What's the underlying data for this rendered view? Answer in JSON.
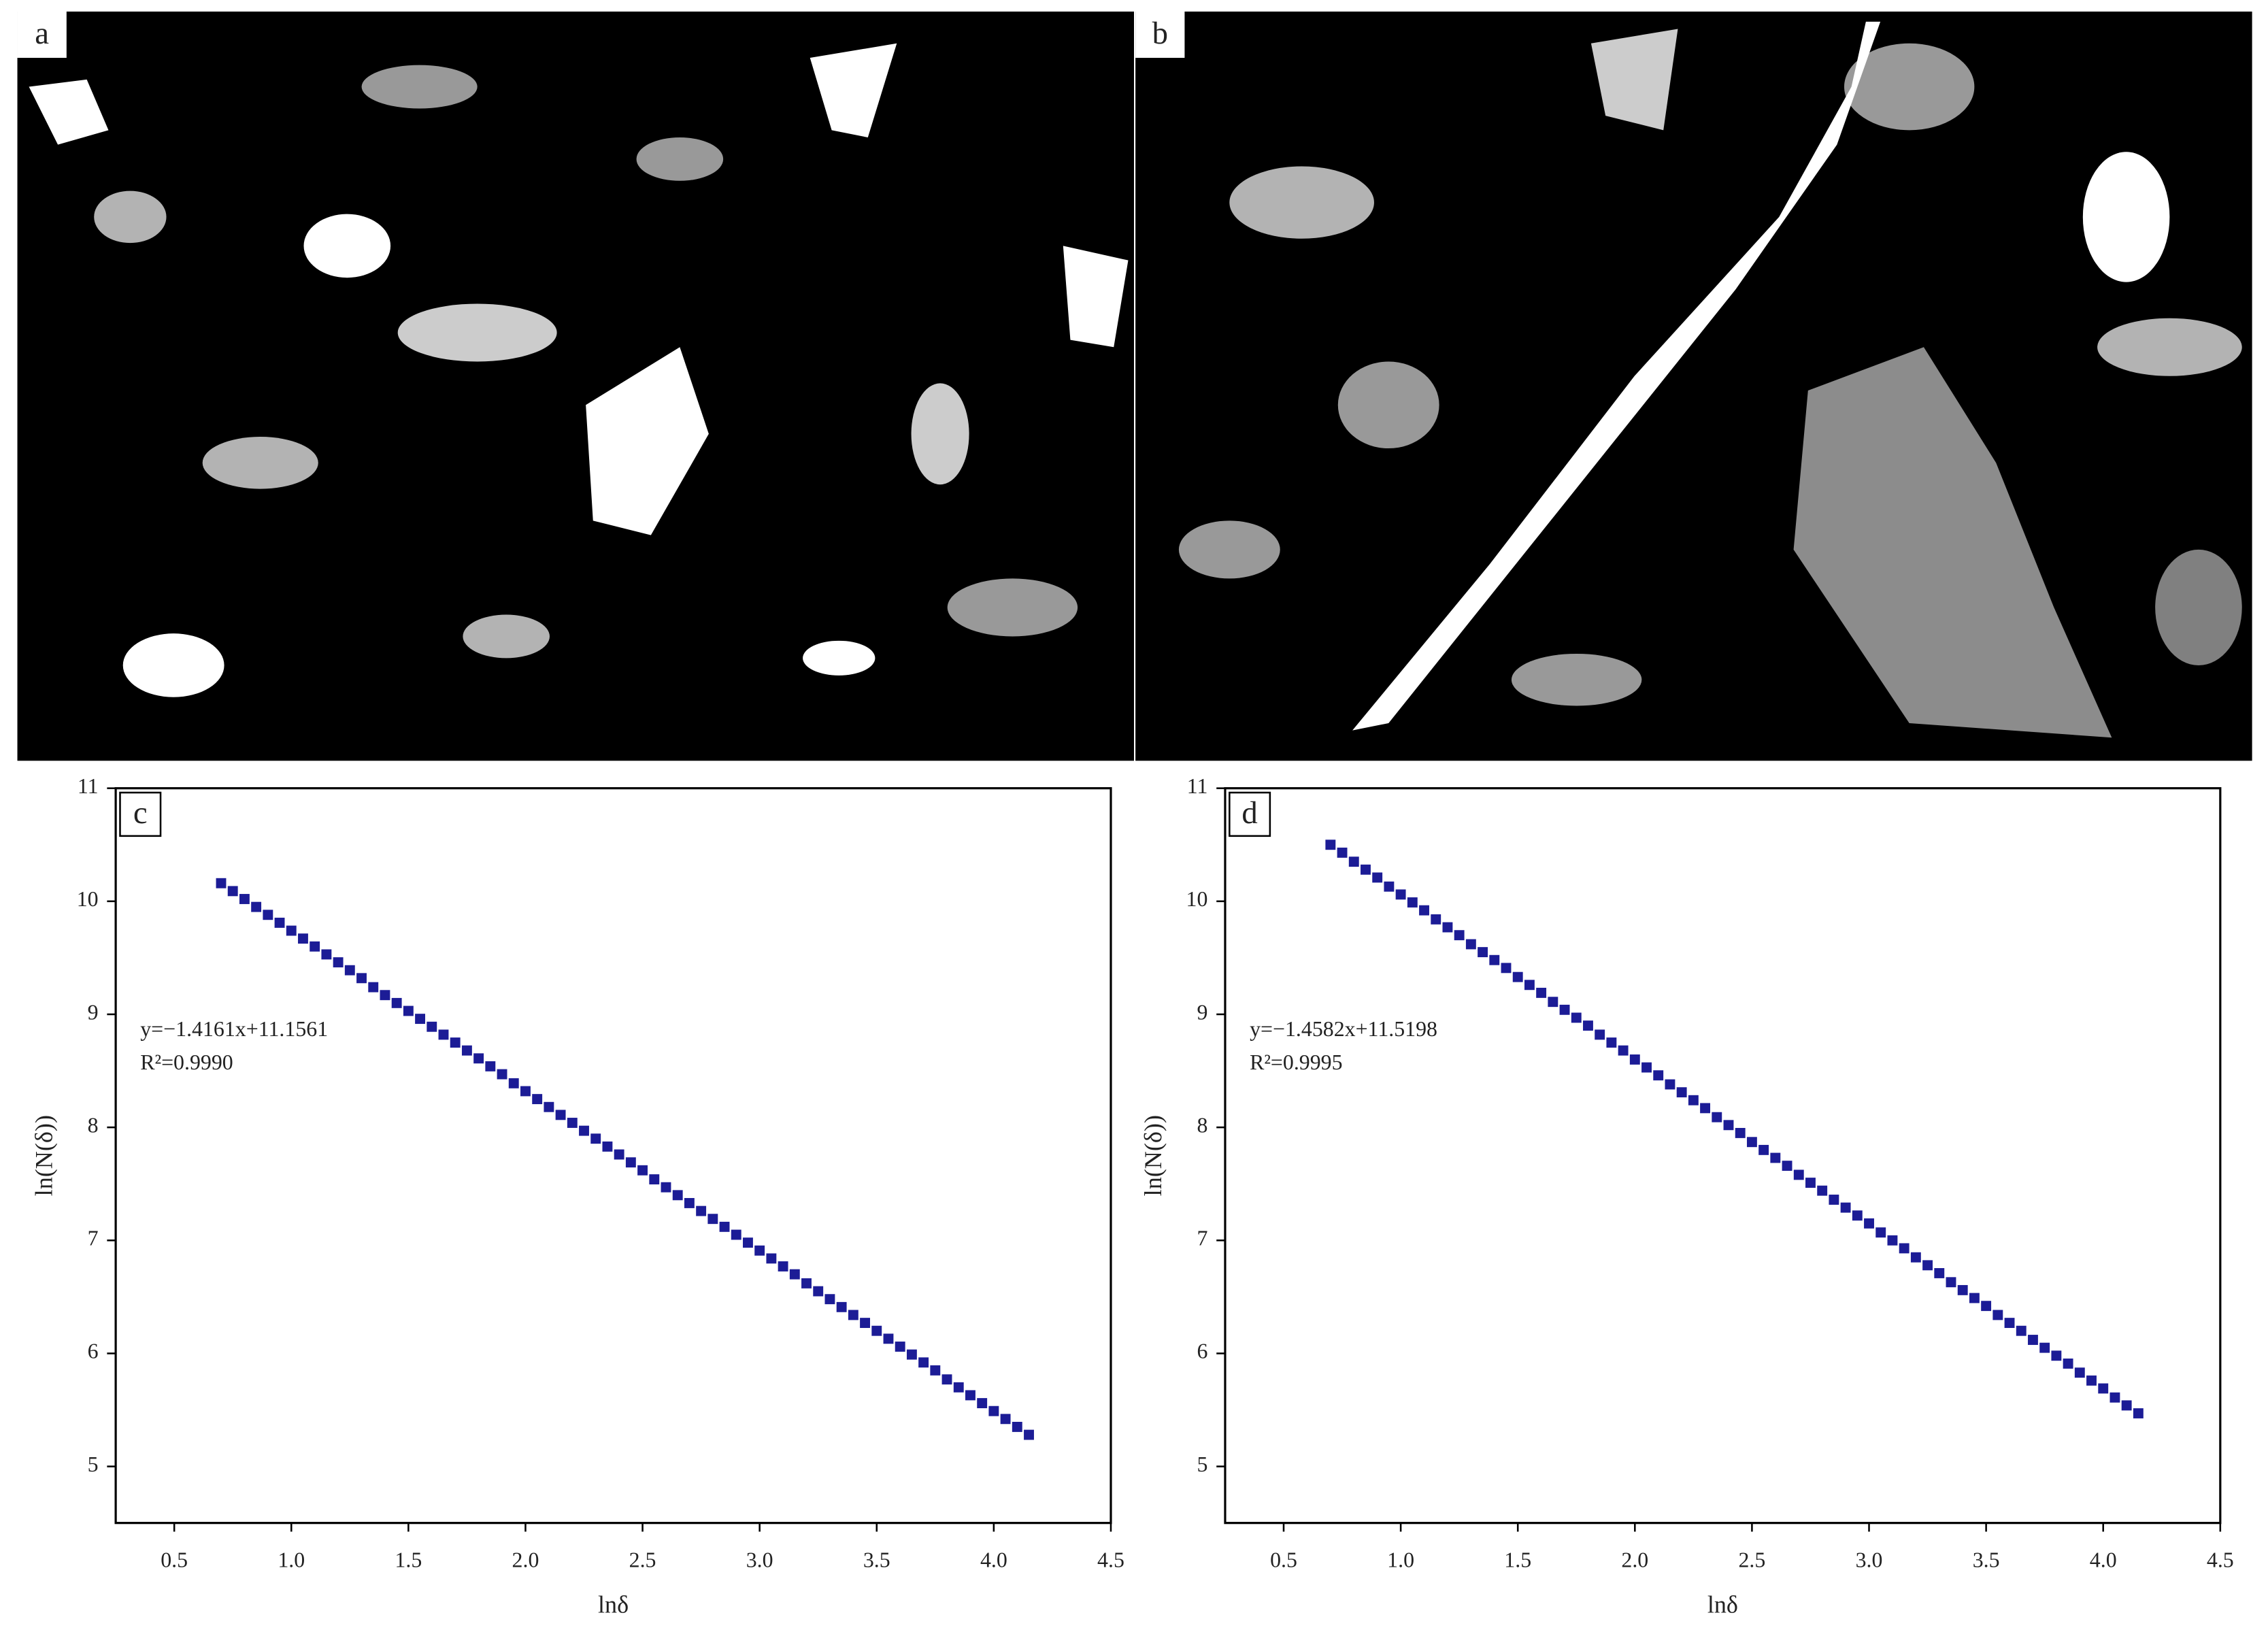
{
  "images": [
    {
      "label": "a"
    },
    {
      "label": "b"
    }
  ],
  "chart_data": [
    {
      "type": "scatter",
      "label": "c",
      "xlabel": "lnδ",
      "ylabel": "ln(N(δ))",
      "annotations": [
        "y=−1.4161x+11.1561",
        "R²=0.9990"
      ],
      "color": "#1c1c96",
      "xlim": [
        0.25,
        4.5
      ],
      "ylim": [
        4.5,
        11
      ],
      "xticks": [
        0.5,
        {
          "value": 1,
          "label": "1.0"
        },
        1.5,
        {
          "value": 2,
          "label": "2.0"
        },
        2.5,
        {
          "value": 3,
          "label": "3.0"
        },
        3.5,
        {
          "value": 4,
          "label": "4.0"
        },
        4.5
      ],
      "yticks": [
        5,
        6,
        7,
        8,
        9,
        10,
        11
      ],
      "x": [
        0.7,
        0.75,
        0.8,
        0.85,
        0.9,
        0.95,
        1,
        1.05,
        1.1,
        1.15,
        1.2,
        1.25,
        1.3,
        1.35,
        1.4,
        1.45,
        1.5,
        1.55,
        1.6,
        1.65,
        1.7,
        1.75,
        1.8,
        1.85,
        1.9,
        1.95,
        2,
        2.05,
        2.1,
        2.15,
        2.2,
        2.25,
        2.3,
        2.35,
        2.4,
        2.45,
        2.5,
        2.55,
        2.6,
        2.65,
        2.7,
        2.75,
        2.8,
        2.85,
        2.9,
        2.95,
        3,
        3.05,
        3.1,
        3.15,
        3.2,
        3.25,
        3.3,
        3.35,
        3.4,
        3.45,
        3.5,
        3.55,
        3.6,
        3.65,
        3.7,
        3.75,
        3.8,
        3.85,
        3.9,
        3.95,
        4,
        4.05,
        4.1,
        4.15
      ],
      "values": [
        10.16,
        10.09,
        10.02,
        9.95,
        9.88,
        9.81,
        9.74,
        9.67,
        9.6,
        9.53,
        9.46,
        9.39,
        9.32,
        9.24,
        9.17,
        9.1,
        9.03,
        8.96,
        8.89,
        8.82,
        8.75,
        8.68,
        8.61,
        8.54,
        8.47,
        8.39,
        8.32,
        8.25,
        8.18,
        8.11,
        8.04,
        7.97,
        7.9,
        7.83,
        7.76,
        7.69,
        7.62,
        7.54,
        7.47,
        7.4,
        7.33,
        7.26,
        7.19,
        7.12,
        7.05,
        6.98,
        6.91,
        6.84,
        6.77,
        6.7,
        6.62,
        6.55,
        6.48,
        6.41,
        6.34,
        6.27,
        6.2,
        6.13,
        6.06,
        5.99,
        5.92,
        5.85,
        5.77,
        5.7,
        5.63,
        5.56,
        5.49,
        5.42,
        5.35,
        5.28
      ]
    },
    {
      "type": "scatter",
      "label": "d",
      "xlabel": "lnδ",
      "ylabel": "ln(N(δ))",
      "annotations": [
        "y=−1.4582x+11.5198",
        "R²=0.9995"
      ],
      "color": "#1c1c96",
      "xlim": [
        0.25,
        4.5
      ],
      "ylim": [
        4.5,
        11
      ],
      "xticks": [
        0.5,
        {
          "value": 1,
          "label": "1.0"
        },
        1.5,
        {
          "value": 2,
          "label": "2.0"
        },
        2.5,
        {
          "value": 3,
          "label": "3.0"
        },
        3.5,
        {
          "value": 4,
          "label": "4.0"
        },
        4.5
      ],
      "yticks": [
        5,
        6,
        7,
        8,
        9,
        10,
        11
      ],
      "x": [
        0.7,
        0.75,
        0.8,
        0.85,
        0.9,
        0.95,
        1,
        1.05,
        1.1,
        1.15,
        1.2,
        1.25,
        1.3,
        1.35,
        1.4,
        1.45,
        1.5,
        1.55,
        1.6,
        1.65,
        1.7,
        1.75,
        1.8,
        1.85,
        1.9,
        1.95,
        2,
        2.05,
        2.1,
        2.15,
        2.2,
        2.25,
        2.3,
        2.35,
        2.4,
        2.45,
        2.5,
        2.55,
        2.6,
        2.65,
        2.7,
        2.75,
        2.8,
        2.85,
        2.9,
        2.95,
        3,
        3.05,
        3.1,
        3.15,
        3.2,
        3.25,
        3.3,
        3.35,
        3.4,
        3.45,
        3.5,
        3.55,
        3.6,
        3.65,
        3.7,
        3.75,
        3.8,
        3.85,
        3.9,
        3.95,
        4,
        4.05,
        4.1,
        4.15
      ],
      "values": [
        10.5,
        10.43,
        10.35,
        10.28,
        10.21,
        10.13,
        10.06,
        9.99,
        9.92,
        9.84,
        9.77,
        9.7,
        9.62,
        9.55,
        9.48,
        9.41,
        9.33,
        9.26,
        9.19,
        9.11,
        9.04,
        8.97,
        8.9,
        8.82,
        8.75,
        8.68,
        8.6,
        8.53,
        8.46,
        8.38,
        8.31,
        8.24,
        8.17,
        8.09,
        8.02,
        7.95,
        7.87,
        7.8,
        7.73,
        7.66,
        7.58,
        7.51,
        7.44,
        7.36,
        7.29,
        7.22,
        7.15,
        7.07,
        7,
        6.93,
        6.85,
        6.78,
        6.71,
        6.63,
        6.56,
        6.49,
        6.42,
        6.34,
        6.27,
        6.2,
        6.12,
        6.05,
        5.98,
        5.91,
        5.83,
        5.76,
        5.69,
        5.61,
        5.54,
        5.47
      ]
    }
  ]
}
